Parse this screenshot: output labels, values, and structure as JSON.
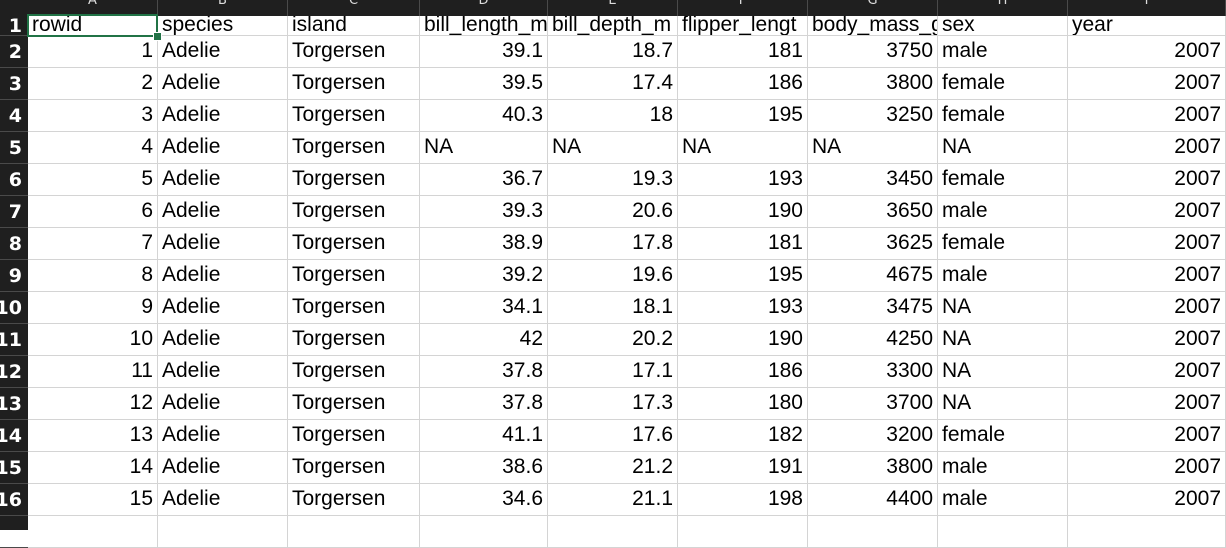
{
  "columns": [
    "A",
    "B",
    "C",
    "D",
    "E",
    "F",
    "G",
    "H",
    "I"
  ],
  "row_numbers": [
    "1",
    "2",
    "3",
    "4",
    "5",
    "6",
    "7",
    "8",
    "9",
    "10",
    "11",
    "12",
    "13",
    "14",
    "15",
    "16",
    ""
  ],
  "headers": [
    "rowid",
    "species",
    "island",
    "bill_length_m",
    "bill_depth_m",
    "flipper_lengt",
    "body_mass_g",
    "sex",
    "year"
  ],
  "rows": [
    [
      "1",
      "Adelie",
      "Torgersen",
      "39.1",
      "18.7",
      "181",
      "3750",
      "male",
      "2007"
    ],
    [
      "2",
      "Adelie",
      "Torgersen",
      "39.5",
      "17.4",
      "186",
      "3800",
      "female",
      "2007"
    ],
    [
      "3",
      "Adelie",
      "Torgersen",
      "40.3",
      "18",
      "195",
      "3250",
      "female",
      "2007"
    ],
    [
      "4",
      "Adelie",
      "Torgersen",
      "NA",
      "NA",
      "NA",
      "NA",
      "NA",
      "2007"
    ],
    [
      "5",
      "Adelie",
      "Torgersen",
      "36.7",
      "19.3",
      "193",
      "3450",
      "female",
      "2007"
    ],
    [
      "6",
      "Adelie",
      "Torgersen",
      "39.3",
      "20.6",
      "190",
      "3650",
      "male",
      "2007"
    ],
    [
      "7",
      "Adelie",
      "Torgersen",
      "38.9",
      "17.8",
      "181",
      "3625",
      "female",
      "2007"
    ],
    [
      "8",
      "Adelie",
      "Torgersen",
      "39.2",
      "19.6",
      "195",
      "4675",
      "male",
      "2007"
    ],
    [
      "9",
      "Adelie",
      "Torgersen",
      "34.1",
      "18.1",
      "193",
      "3475",
      "NA",
      "2007"
    ],
    [
      "10",
      "Adelie",
      "Torgersen",
      "42",
      "20.2",
      "190",
      "4250",
      "NA",
      "2007"
    ],
    [
      "11",
      "Adelie",
      "Torgersen",
      "37.8",
      "17.1",
      "186",
      "3300",
      "NA",
      "2007"
    ],
    [
      "12",
      "Adelie",
      "Torgersen",
      "37.8",
      "17.3",
      "180",
      "3700",
      "NA",
      "2007"
    ],
    [
      "13",
      "Adelie",
      "Torgersen",
      "41.1",
      "17.6",
      "182",
      "3200",
      "female",
      "2007"
    ],
    [
      "14",
      "Adelie",
      "Torgersen",
      "38.6",
      "21.2",
      "191",
      "3800",
      "male",
      "2007"
    ],
    [
      "15",
      "Adelie",
      "Torgersen",
      "34.6",
      "21.1",
      "198",
      "4400",
      "male",
      "2007"
    ],
    [
      "",
      "",
      "",
      "",
      "",
      "",
      "",
      "",
      ""
    ]
  ],
  "selection_color": "#217346"
}
